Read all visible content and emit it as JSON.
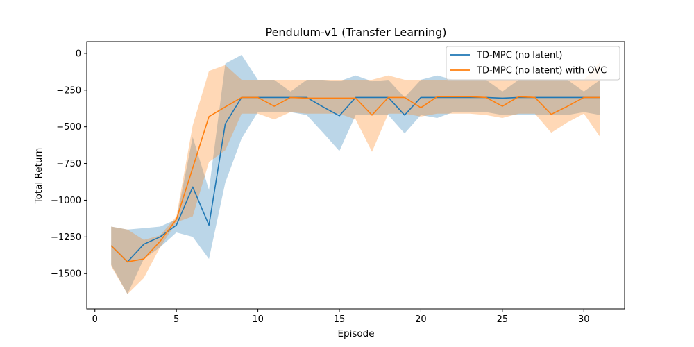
{
  "chart_data": {
    "type": "line",
    "title": "Pendulum-v1 (Transfer Learning)",
    "xlabel": "Episode",
    "ylabel": "Total Return",
    "xlim": [
      -0.5,
      32.5
    ],
    "ylim": [
      -1740,
      80
    ],
    "xticks": [
      0,
      5,
      10,
      15,
      20,
      25,
      30
    ],
    "yticks": [
      0,
      -250,
      -500,
      -750,
      -1000,
      -1250,
      -1500
    ],
    "xtick_labels": [
      "0",
      "5",
      "10",
      "15",
      "20",
      "25",
      "30"
    ],
    "ytick_labels": [
      "0",
      "−250",
      "−500",
      "−750",
      "−1000",
      "−1250",
      "−1500"
    ],
    "grid": false,
    "legend_position": "top-right",
    "x": [
      1,
      2,
      3,
      4,
      5,
      6,
      7,
      8,
      9,
      10,
      11,
      12,
      13,
      14,
      15,
      16,
      17,
      18,
      19,
      20,
      21,
      22,
      23,
      24,
      25,
      26,
      27,
      28,
      29,
      30,
      31
    ],
    "series": [
      {
        "name": "TD-MPC (no latent)",
        "color": "#1f77b4",
        "band_color": "#1f77b4",
        "values": [
          -1310,
          -1420,
          -1300,
          -1250,
          -1170,
          -910,
          -1170,
          -480,
          -300,
          -300,
          -300,
          -300,
          -300,
          -365,
          -425,
          -300,
          -300,
          -300,
          -420,
          -300,
          -300,
          -300,
          -300,
          -300,
          -305,
          -300,
          -300,
          -300,
          -300,
          -300,
          -300
        ],
        "lower": [
          -1440,
          -1640,
          -1400,
          -1320,
          -1220,
          -1250,
          -1400,
          -880,
          -580,
          -400,
          -400,
          -400,
          -420,
          -540,
          -665,
          -420,
          -420,
          -420,
          -545,
          -420,
          -440,
          -400,
          -400,
          -400,
          -420,
          -420,
          -420,
          -420,
          -420,
          -400,
          -420
        ],
        "upper": [
          -1180,
          -1200,
          -1190,
          -1180,
          -1130,
          -570,
          -930,
          -70,
          -10,
          -180,
          -180,
          -260,
          -180,
          -180,
          -190,
          -150,
          -190,
          -180,
          -300,
          -180,
          -150,
          -180,
          -180,
          -180,
          -260,
          -180,
          -180,
          -180,
          -180,
          -260,
          -180
        ]
      },
      {
        "name": "TD-MPC (no latent) with OVC",
        "color": "#ff7f0e",
        "band_color": "#ff7f0e",
        "values": [
          -1310,
          -1420,
          -1400,
          -1280,
          -1130,
          -780,
          -430,
          -365,
          -300,
          -300,
          -360,
          -300,
          -305,
          -305,
          -305,
          -305,
          -420,
          -300,
          -300,
          -370,
          -295,
          -295,
          -295,
          -300,
          -360,
          -295,
          -300,
          -415,
          -360,
          -300,
          -300
        ],
        "lower": [
          -1450,
          -1640,
          -1530,
          -1320,
          -1150,
          -1110,
          -740,
          -660,
          -410,
          -410,
          -450,
          -400,
          -410,
          -410,
          -410,
          -450,
          -670,
          -410,
          -410,
          -430,
          -410,
          -410,
          -410,
          -420,
          -440,
          -410,
          -410,
          -540,
          -470,
          -410,
          -570
        ],
        "upper": [
          -1180,
          -1200,
          -1270,
          -1240,
          -1110,
          -490,
          -120,
          -80,
          -180,
          -180,
          -180,
          -180,
          -180,
          -180,
          -180,
          -180,
          -180,
          -150,
          -180,
          -180,
          -180,
          -180,
          -180,
          -180,
          -180,
          -180,
          -180,
          -180,
          -180,
          -180,
          -60
        ]
      }
    ]
  }
}
